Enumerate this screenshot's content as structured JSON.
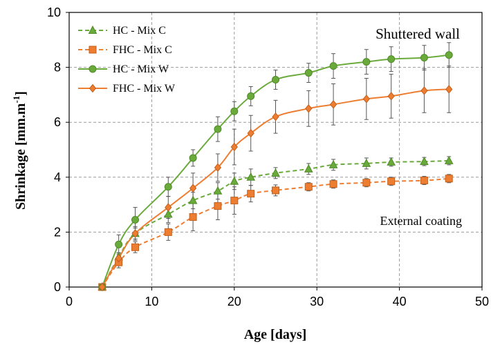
{
  "chart_data": {
    "type": "line",
    "xlabel": "Age [days]",
    "ylabel": "Shrinkage [mm.m-1]",
    "ylabel_main": "Shrinkage [mm.m",
    "ylabel_sup": "-1",
    "ylabel_end": "]",
    "xlim": [
      0,
      50
    ],
    "ylim": [
      0,
      10
    ],
    "xticks": [
      0,
      10,
      20,
      30,
      40,
      50
    ],
    "yticks": [
      0,
      2,
      4,
      6,
      8,
      10
    ],
    "grid": true,
    "legend_position": "top-left",
    "annotations": [
      "Shuttered wall",
      "External coating"
    ],
    "series": [
      {
        "name": "HC - Mix C",
        "color": "#6aaa3a",
        "dash": true,
        "marker": "triangle",
        "x": [
          4,
          6,
          8,
          12,
          15,
          18,
          20,
          22,
          25,
          29,
          32,
          36,
          39,
          43,
          46
        ],
        "y": [
          0,
          1.1,
          1.95,
          2.65,
          3.15,
          3.5,
          3.85,
          4.0,
          4.15,
          4.3,
          4.45,
          4.5,
          4.55,
          4.57,
          4.6
        ],
        "err": [
          0,
          0.15,
          0.2,
          0.3,
          0.3,
          0.3,
          0.3,
          0.3,
          0.2,
          0.2,
          0.2,
          0.2,
          0.15,
          0.15,
          0.15
        ]
      },
      {
        "name": "FHC - Mix C",
        "color": "#ed7d31",
        "dash": true,
        "marker": "square",
        "x": [
          4,
          6,
          8,
          12,
          15,
          18,
          20,
          22,
          25,
          29,
          32,
          36,
          39,
          43,
          46
        ],
        "y": [
          0,
          0.9,
          1.45,
          2.0,
          2.55,
          2.95,
          3.15,
          3.4,
          3.52,
          3.65,
          3.75,
          3.8,
          3.85,
          3.88,
          3.95
        ],
        "err": [
          0,
          0.2,
          0.2,
          0.3,
          0.5,
          0.5,
          0.5,
          0.3,
          0.2,
          0.15,
          0.15,
          0.15,
          0.15,
          0.15,
          0.15
        ]
      },
      {
        "name": "HC - Mix W",
        "color": "#6aaa3a",
        "dash": false,
        "marker": "circle",
        "x": [
          4,
          6,
          8,
          12,
          15,
          18,
          20,
          22,
          25,
          29,
          32,
          36,
          39,
          43,
          46
        ],
        "y": [
          0,
          1.55,
          2.45,
          3.65,
          4.7,
          5.75,
          6.4,
          6.95,
          7.55,
          7.8,
          8.05,
          8.2,
          8.3,
          8.35,
          8.45
        ],
        "err": [
          0,
          0.35,
          0.45,
          0.35,
          0.3,
          0.45,
          0.35,
          0.35,
          0.35,
          0.35,
          0.45,
          0.45,
          0.45,
          0.45,
          0.45
        ]
      },
      {
        "name": "FHC - Mix W",
        "color": "#ed7d31",
        "dash": false,
        "marker": "diamond",
        "x": [
          4,
          6,
          8,
          12,
          15,
          18,
          20,
          22,
          25,
          29,
          32,
          36,
          39,
          43,
          46
        ],
        "y": [
          0,
          1.05,
          1.95,
          2.9,
          3.6,
          4.35,
          5.1,
          5.6,
          6.2,
          6.5,
          6.65,
          6.85,
          6.95,
          7.15,
          7.2
        ],
        "err": [
          0,
          0.2,
          0.25,
          0.4,
          0.55,
          0.5,
          0.65,
          0.65,
          0.6,
          0.65,
          0.75,
          0.75,
          0.8,
          0.8,
          0.85
        ]
      }
    ]
  }
}
